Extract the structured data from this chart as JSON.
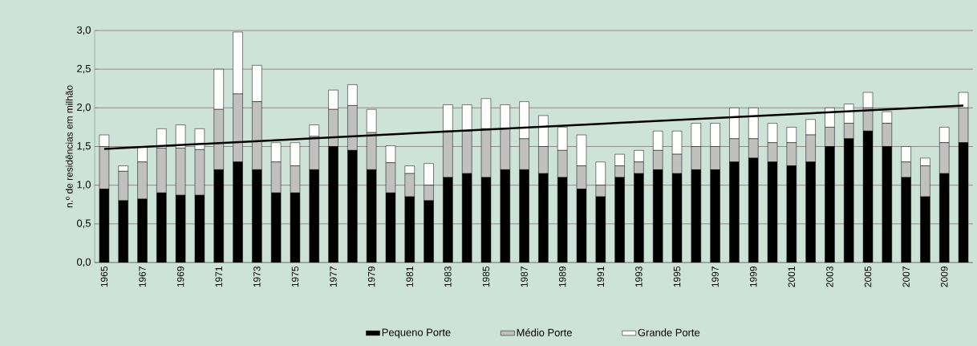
{
  "chart_data": {
    "type": "bar",
    "stacked": true,
    "ylabel": "n.º de residências em milhão",
    "categories": [
      "1965",
      null,
      "1967",
      null,
      "1969",
      null,
      "1971",
      null,
      "1973",
      null,
      "1975",
      null,
      "1977",
      null,
      "1979",
      null,
      "1981",
      null,
      "1983",
      null,
      "1985",
      null,
      "1987",
      null,
      "1989",
      null,
      "1991",
      null,
      "1993",
      null,
      "1995",
      null,
      "1997",
      null,
      "1999",
      null,
      "2001",
      null,
      "2003",
      null,
      "2005",
      null,
      "2007",
      null,
      "2009",
      null
    ],
    "series": [
      {
        "name": "Pequeno Porte",
        "color": "#000000",
        "values": [
          0.95,
          0.8,
          0.82,
          0.9,
          0.87,
          0.87,
          1.2,
          1.3,
          1.2,
          0.9,
          0.9,
          1.2,
          1.5,
          1.45,
          1.2,
          0.9,
          0.85,
          0.8,
          1.1,
          1.15,
          1.1,
          1.2,
          1.2,
          1.15,
          1.1,
          0.95,
          0.85,
          1.1,
          1.15,
          1.2,
          1.15,
          1.2,
          1.2,
          1.3,
          1.35,
          1.3,
          1.25,
          1.3,
          1.5,
          1.6,
          1.7,
          1.5,
          1.1,
          0.85,
          1.15,
          1.55
        ]
      },
      {
        "name": "Médio Porte",
        "color": "#c0c0c0",
        "values": [
          0.55,
          0.38,
          0.48,
          0.58,
          0.61,
          0.59,
          0.78,
          0.88,
          0.88,
          0.4,
          0.35,
          0.43,
          0.48,
          0.58,
          0.48,
          0.39,
          0.3,
          0.2,
          0.6,
          0.55,
          0.63,
          0.53,
          0.4,
          0.35,
          0.35,
          0.3,
          0.15,
          0.15,
          0.15,
          0.25,
          0.25,
          0.3,
          0.3,
          0.3,
          0.25,
          0.25,
          0.3,
          0.35,
          0.25,
          0.2,
          0.3,
          0.3,
          0.2,
          0.4,
          0.4,
          0.45
        ]
      },
      {
        "name": "Grande Porte",
        "color": "#ffffff",
        "values": [
          0.15,
          0.07,
          0.2,
          0.25,
          0.3,
          0.27,
          0.52,
          0.8,
          0.47,
          0.25,
          0.3,
          0.15,
          0.25,
          0.27,
          0.3,
          0.22,
          0.1,
          0.28,
          0.34,
          0.34,
          0.39,
          0.31,
          0.48,
          0.4,
          0.3,
          0.4,
          0.3,
          0.15,
          0.15,
          0.25,
          0.3,
          0.3,
          0.3,
          0.4,
          0.4,
          0.25,
          0.2,
          0.2,
          0.25,
          0.25,
          0.2,
          0.15,
          0.2,
          0.1,
          0.2,
          0.2
        ]
      },
      {
        "type": "line",
        "color": "#000000",
        "values": [
          1.47,
          null,
          null,
          null,
          null,
          null,
          null,
          null,
          null,
          null,
          null,
          null,
          null,
          null,
          null,
          null,
          null,
          null,
          null,
          null,
          null,
          null,
          null,
          null,
          null,
          null,
          null,
          null,
          null,
          null,
          null,
          null,
          null,
          null,
          null,
          null,
          null,
          null,
          null,
          null,
          null,
          null,
          null,
          null,
          null,
          2.03
        ]
      }
    ],
    "ylim": [
      0,
      3
    ],
    "yticks": [
      {
        "value": 0,
        "label": "0,0"
      },
      {
        "value": 0.5,
        "label": "0,5"
      },
      {
        "value": 1,
        "label": "1,0"
      },
      {
        "value": 1.5,
        "label": "1,5"
      },
      {
        "value": 2,
        "label": "2,0"
      },
      {
        "value": 2.5,
        "label": "2,5"
      },
      {
        "value": 3,
        "label": "3,0"
      }
    ],
    "grid": "y",
    "legend": "bottom"
  }
}
